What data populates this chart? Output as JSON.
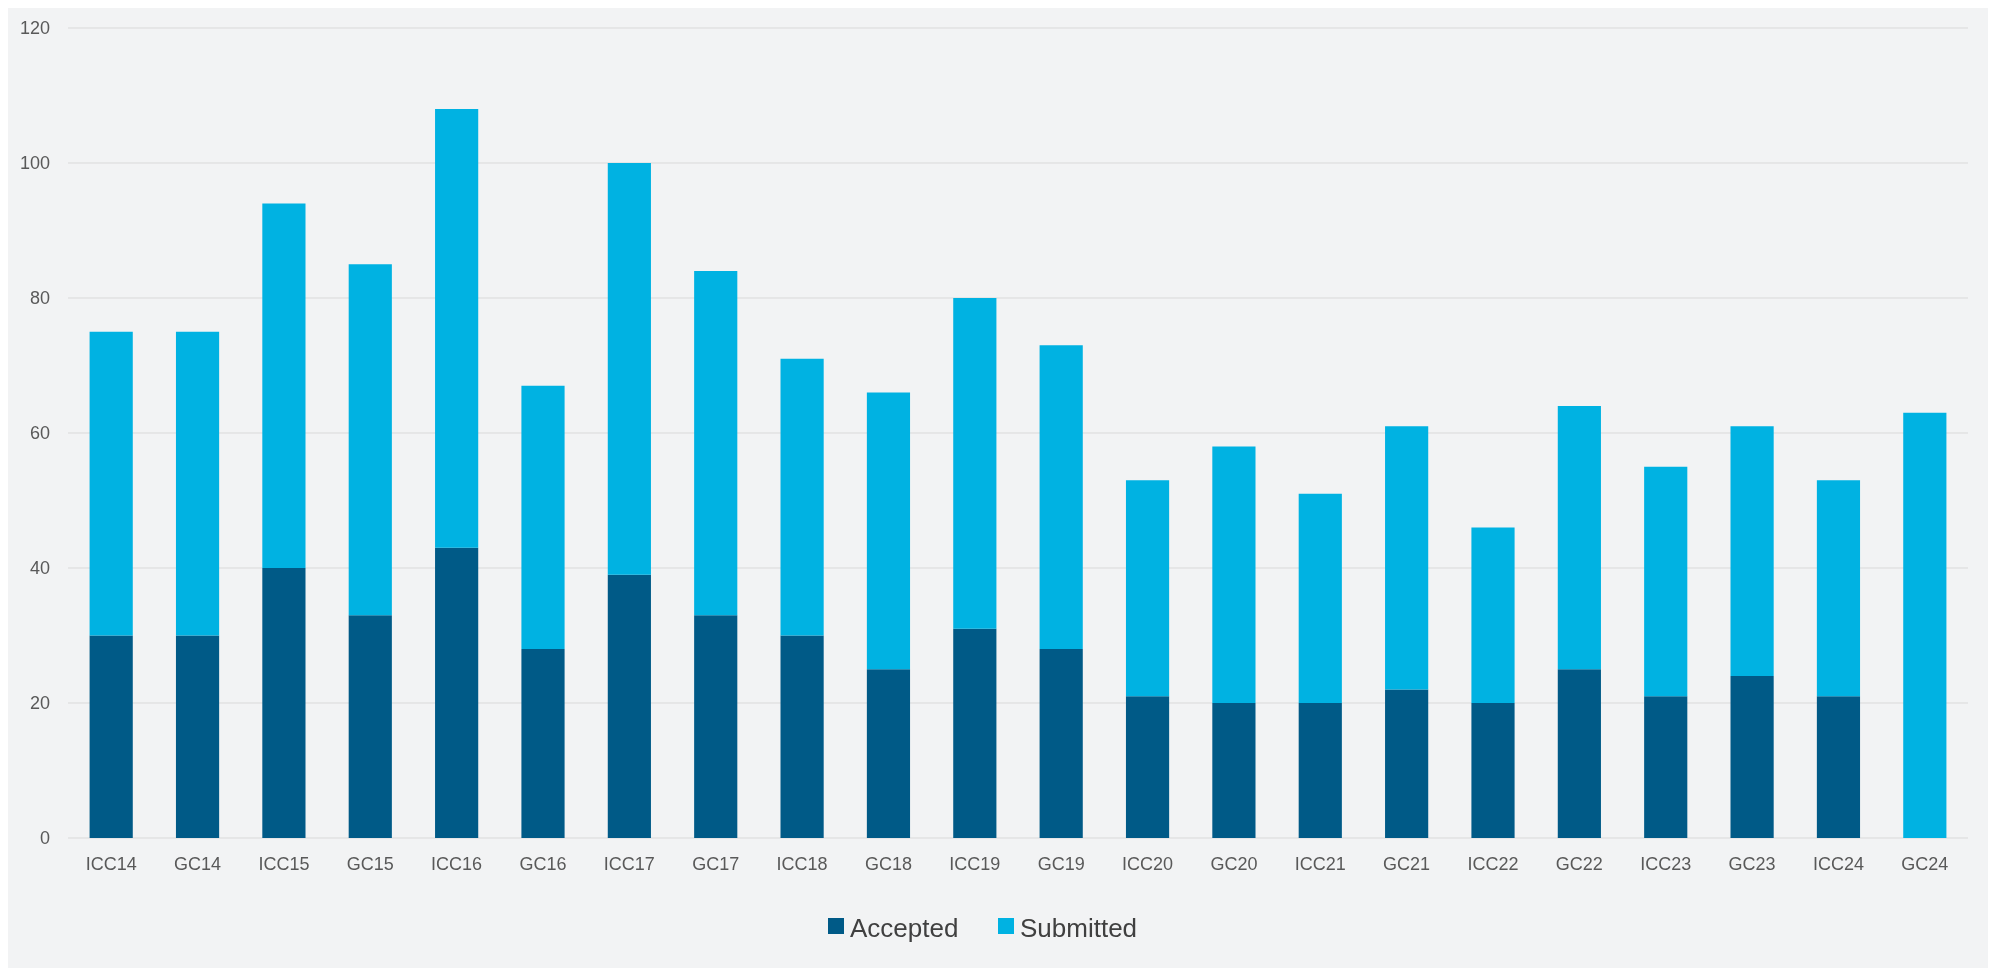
{
  "chart_data": {
    "type": "bar",
    "stacked": true,
    "categories": [
      "ICC14",
      "GC14",
      "ICC15",
      "GC15",
      "ICC16",
      "GC16",
      "ICC17",
      "GC17",
      "ICC18",
      "GC18",
      "ICC19",
      "GC19",
      "ICC20",
      "GC20",
      "ICC21",
      "GC21",
      "ICC22",
      "GC22",
      "ICC23",
      "GC23",
      "ICC24",
      "GC24"
    ],
    "series": [
      {
        "name": "Accepted",
        "color": "#005a87",
        "values": [
          30,
          30,
          40,
          33,
          43,
          28,
          39,
          33,
          30,
          25,
          31,
          28,
          21,
          20,
          20,
          22,
          20,
          25,
          21,
          24,
          21,
          null
        ]
      },
      {
        "name": "Submitted",
        "color": "#00b2e2",
        "values": [
          45,
          45,
          54,
          52,
          65,
          39,
          61,
          51,
          41,
          41,
          49,
          45,
          32,
          38,
          31,
          39,
          26,
          39,
          34,
          37,
          32,
          63
        ]
      }
    ],
    "ylim": [
      0,
      120
    ],
    "yticks": [
      0,
      20,
      40,
      60,
      80,
      100,
      120
    ],
    "grid": "y",
    "legend": "bottom"
  }
}
